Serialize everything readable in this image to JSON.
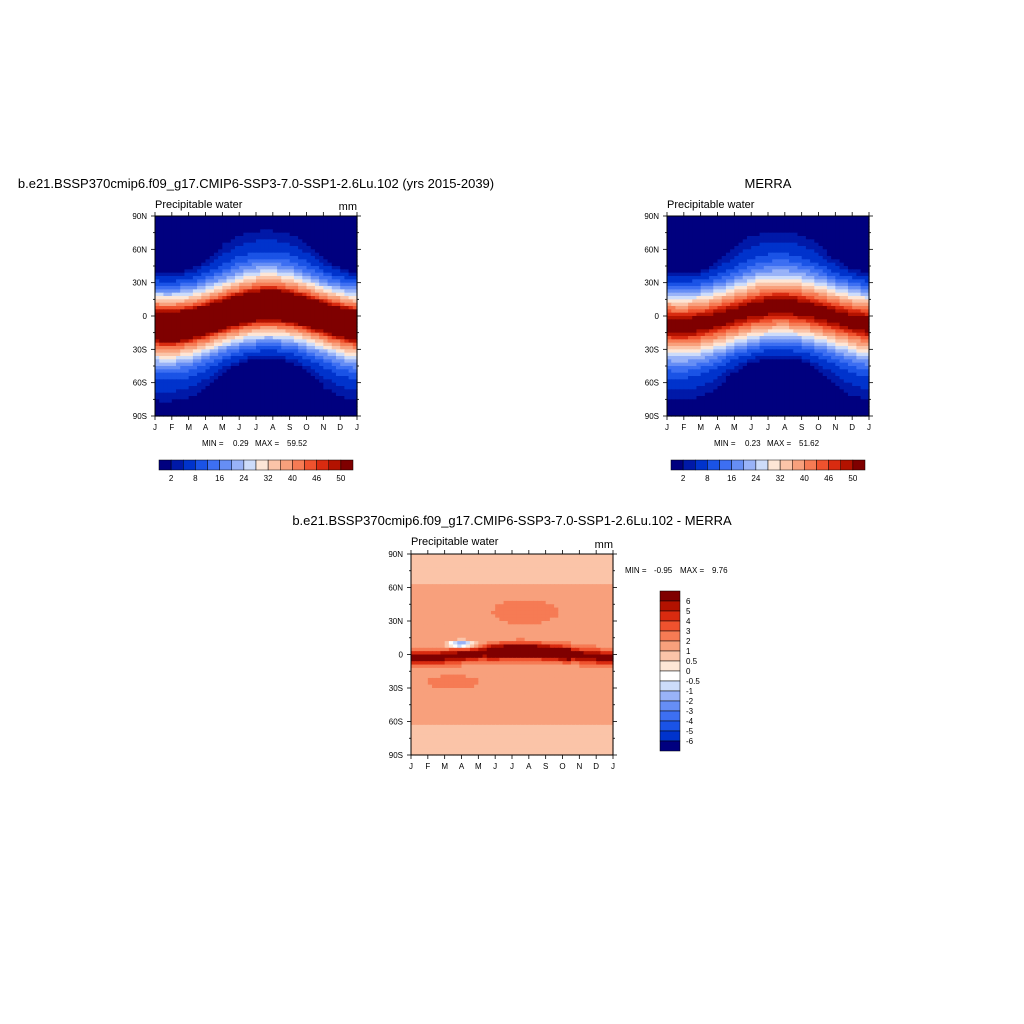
{
  "chart_data": [
    {
      "type": "heatmap",
      "title": "b.e21.BSSP370cmip6.f09_g17.CMIP6-SSP3-7.0-SSP1-2.6Lu.102 (yrs 2015-2039)",
      "subtitle": "Precipitable water",
      "units": "mm",
      "x": [
        "J",
        "F",
        "M",
        "A",
        "M",
        "J",
        "J",
        "A",
        "S",
        "O",
        "N",
        "D",
        "J"
      ],
      "y": [
        "90S",
        "60S",
        "30S",
        "0",
        "30N",
        "60N",
        "90N"
      ],
      "xlim": [
        0,
        12
      ],
      "ylim": [
        -90,
        90
      ],
      "stats": {
        "min_label": "MIN =",
        "min": "0.29",
        "max_label": "MAX =",
        "max": "59.52"
      },
      "field": {
        "equator_peak": 59.52,
        "peak_amplitude_lat": 9,
        "pole_min": 0.29
      },
      "colorbar": {
        "ticks": [
          "2",
          "8",
          "16",
          "24",
          "32",
          "40",
          "46",
          "50"
        ],
        "colors": [
          "#00007f",
          "#0019a8",
          "#0033cc",
          "#1a53e6",
          "#3d6ff2",
          "#668ef5",
          "#99b3f8",
          "#cddcfa",
          "#fde6d6",
          "#fbc4a8",
          "#f8a07c",
          "#f67b54",
          "#ef522e",
          "#d92b10",
          "#b31200",
          "#7f0000"
        ]
      }
    },
    {
      "type": "heatmap",
      "title": "MERRA",
      "subtitle": "Precipitable water",
      "units": "",
      "x": [
        "J",
        "F",
        "M",
        "A",
        "M",
        "J",
        "J",
        "A",
        "S",
        "O",
        "N",
        "D",
        "J"
      ],
      "y": [
        "90S",
        "60S",
        "30S",
        "0",
        "30N",
        "60N",
        "90N"
      ],
      "xlim": [
        0,
        12
      ],
      "ylim": [
        -90,
        90
      ],
      "stats": {
        "min_label": "MIN =",
        "min": "0.23",
        "max_label": "MAX =",
        "max": "51.62"
      },
      "field": {
        "equator_peak": 51.62,
        "peak_amplitude_lat": 8,
        "pole_min": 0.23
      },
      "colorbar": {
        "ticks": [
          "2",
          "8",
          "16",
          "24",
          "32",
          "40",
          "46",
          "50"
        ],
        "colors": [
          "#00007f",
          "#0019a8",
          "#0033cc",
          "#1a53e6",
          "#3d6ff2",
          "#668ef5",
          "#99b3f8",
          "#cddcfa",
          "#fde6d6",
          "#fbc4a8",
          "#f8a07c",
          "#f67b54",
          "#ef522e",
          "#d92b10",
          "#b31200",
          "#7f0000"
        ]
      }
    },
    {
      "type": "heatmap",
      "title": "b.e21.BSSP370cmip6.f09_g17.CMIP6-SSP3-7.0-SSP1-2.6Lu.102 - MERRA",
      "subtitle": "Precipitable water",
      "units": "mm",
      "x": [
        "J",
        "F",
        "M",
        "A",
        "M",
        "J",
        "J",
        "A",
        "S",
        "O",
        "N",
        "D",
        "J"
      ],
      "y": [
        "90S",
        "60S",
        "30S",
        "0",
        "30N",
        "60N",
        "90N"
      ],
      "xlim": [
        0,
        12
      ],
      "ylim": [
        -90,
        90
      ],
      "stats": {
        "min_label": "MIN =",
        "min": "-0.95",
        "max_label": "MAX =",
        "max": "9.76"
      },
      "colorbar": {
        "ticks": [
          "6",
          "5",
          "4",
          "3",
          "2",
          "1",
          "0.5",
          "0",
          "-0.5",
          "-1",
          "-2",
          "-3",
          "-4",
          "-5",
          "-6"
        ],
        "colors": [
          "#7f0000",
          "#b31200",
          "#d92b10",
          "#ef522e",
          "#f67b54",
          "#f8a07c",
          "#fbc4a8",
          "#fde6d6",
          "#ffffff",
          "#cddcfa",
          "#99b3f8",
          "#668ef5",
          "#3d6ff2",
          "#1a53e6",
          "#0033cc",
          "#00007f"
        ]
      }
    }
  ]
}
